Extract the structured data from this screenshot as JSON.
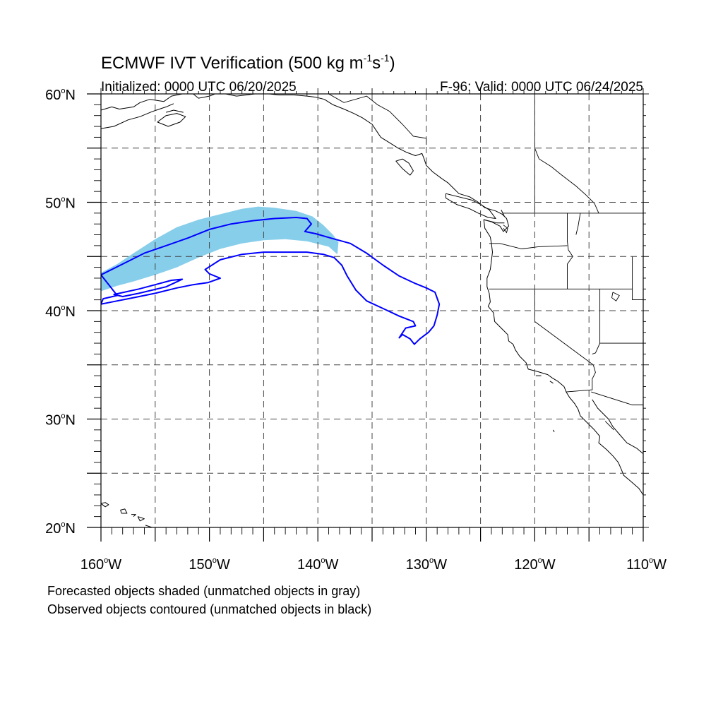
{
  "title": {
    "main": "ECMWF IVT Verification (500 kg m",
    "sup1": "-1",
    "mid": "s",
    "sup2": "-1",
    "close": ")"
  },
  "subtitle_left": "Initialized: 0000 UTC 06/20/2025",
  "subtitle_right": "F-96: Valid: 0000 UTC 06/24/2025",
  "map": {
    "lon_range": [
      -160,
      -110
    ],
    "lat_range": [
      20,
      60
    ],
    "grid": true,
    "grid_style": "dashed"
  },
  "axes": {
    "lat_labels": [
      {
        "value": 60,
        "label": "60",
        "suffix": "N"
      },
      {
        "value": 50,
        "label": "50",
        "suffix": "N"
      },
      {
        "value": 40,
        "label": "40",
        "suffix": "N"
      },
      {
        "value": 30,
        "label": "30",
        "suffix": "N"
      },
      {
        "value": 20,
        "label": "20",
        "suffix": "N"
      }
    ],
    "lon_labels": [
      {
        "value": -160,
        "label": "160",
        "suffix": "W"
      },
      {
        "value": -150,
        "label": "150",
        "suffix": "W"
      },
      {
        "value": -140,
        "label": "140",
        "suffix": "W"
      },
      {
        "value": -130,
        "label": "130",
        "suffix": "W"
      },
      {
        "value": -120,
        "label": "120",
        "suffix": "W"
      },
      {
        "value": -110,
        "label": "110",
        "suffix": "W"
      }
    ]
  },
  "colors": {
    "forecast_fill": "#87ceeb",
    "observed_contour": "#0000ff",
    "coastline": "#000000",
    "grid": "#444444"
  },
  "legend": {
    "line1": "Forecasted objects shaded (unmatched objects in gray)",
    "line2": "Observed objects contoured (unmatched objects in black)"
  },
  "forecast_object": [
    [
      -160.0,
      41.8
    ],
    [
      -158.5,
      42.3
    ],
    [
      -157.0,
      42.7
    ],
    [
      -155.0,
      43.3
    ],
    [
      -153.0,
      44.0
    ],
    [
      -151.0,
      44.9
    ],
    [
      -149.0,
      45.7
    ],
    [
      -147.0,
      46.2
    ],
    [
      -145.0,
      46.5
    ],
    [
      -143.0,
      46.6
    ],
    [
      -141.0,
      46.4
    ],
    [
      -139.0,
      45.9
    ],
    [
      -138.2,
      45.2
    ],
    [
      -138.1,
      46.3
    ],
    [
      -138.6,
      47.0
    ],
    [
      -139.5,
      47.9
    ],
    [
      -140.5,
      48.7
    ],
    [
      -142.0,
      49.2
    ],
    [
      -144.0,
      49.5
    ],
    [
      -145.5,
      49.6
    ],
    [
      -147.0,
      49.4
    ],
    [
      -149.0,
      48.9
    ],
    [
      -151.0,
      48.4
    ],
    [
      -153.0,
      47.7
    ],
    [
      -155.0,
      46.6
    ],
    [
      -157.0,
      45.3
    ],
    [
      -158.5,
      44.3
    ],
    [
      -160.0,
      43.5
    ]
  ],
  "observed_object_outer": [
    [
      -160.0,
      43.3
    ],
    [
      -158.0,
      44.3
    ],
    [
      -156.0,
      45.3
    ],
    [
      -154.0,
      46.0
    ],
    [
      -152.0,
      46.7
    ],
    [
      -150.0,
      47.5
    ],
    [
      -148.0,
      48.0
    ],
    [
      -146.0,
      48.3
    ],
    [
      -144.0,
      48.5
    ],
    [
      -142.0,
      48.6
    ],
    [
      -141.0,
      48.5
    ],
    [
      -140.6,
      48.0
    ],
    [
      -141.2,
      47.3
    ],
    [
      -140.2,
      47.1
    ],
    [
      -138.8,
      46.7
    ],
    [
      -137.0,
      46.2
    ],
    [
      -135.5,
      45.3
    ],
    [
      -134.0,
      44.2
    ],
    [
      -132.5,
      43.2
    ],
    [
      -131.0,
      42.5
    ],
    [
      -130.0,
      42.1
    ],
    [
      -129.2,
      41.7
    ],
    [
      -128.8,
      40.6
    ],
    [
      -129.0,
      39.6
    ],
    [
      -129.3,
      38.6
    ],
    [
      -129.8,
      38.0
    ],
    [
      -130.6,
      37.4
    ],
    [
      -131.1,
      36.9
    ],
    [
      -131.5,
      37.4
    ],
    [
      -132.2,
      37.8
    ],
    [
      -132.5,
      37.5
    ],
    [
      -131.9,
      38.4
    ],
    [
      -131.0,
      38.6
    ],
    [
      -131.2,
      39.0
    ],
    [
      -132.5,
      39.5
    ],
    [
      -134.0,
      40.2
    ],
    [
      -135.5,
      40.9
    ],
    [
      -136.5,
      41.9
    ],
    [
      -137.3,
      43.2
    ],
    [
      -137.8,
      44.2
    ],
    [
      -138.5,
      44.9
    ],
    [
      -139.5,
      45.2
    ],
    [
      -141.0,
      45.4
    ],
    [
      -143.0,
      45.4
    ],
    [
      -145.0,
      45.4
    ],
    [
      -147.0,
      45.2
    ],
    [
      -149.0,
      44.7
    ],
    [
      -150.4,
      43.8
    ],
    [
      -150.0,
      43.4
    ],
    [
      -149.0,
      43.0
    ],
    [
      -150.1,
      42.6
    ],
    [
      -151.5,
      42.4
    ],
    [
      -153.0,
      42.1
    ],
    [
      -155.0,
      41.6
    ],
    [
      -157.0,
      41.2
    ],
    [
      -159.0,
      40.8
    ],
    [
      -160.0,
      40.6
    ],
    [
      -159.8,
      41.1
    ],
    [
      -158.5,
      41.4
    ]
  ],
  "observed_object_inner": [
    [
      -158.3,
      41.6
    ],
    [
      -156.5,
      42.0
    ],
    [
      -155.0,
      42.4
    ],
    [
      -153.5,
      42.8
    ],
    [
      -152.5,
      42.9
    ],
    [
      -154.0,
      42.2
    ],
    [
      -156.5,
      41.6
    ],
    [
      -158.0,
      41.3
    ],
    [
      -158.8,
      41.5
    ]
  ],
  "coastlines": [
    [
      [
        -160.0,
        58.5
      ],
      [
        -159.0,
        58.8
      ],
      [
        -158.3,
        58.6
      ],
      [
        -157.0,
        58.8
      ],
      [
        -156.4,
        59.2
      ],
      [
        -155.5,
        59.5
      ],
      [
        -154.2,
        59.3
      ],
      [
        -153.5,
        59.8
      ],
      [
        -152.5,
        60.0
      ]
    ],
    [
      [
        -160.0,
        56.8
      ],
      [
        -158.8,
        57.0
      ],
      [
        -157.5,
        57.6
      ],
      [
        -156.4,
        57.9
      ],
      [
        -155.2,
        58.4
      ],
      [
        -154.0,
        58.8
      ],
      [
        -153.3,
        59.1
      ]
    ],
    [
      [
        -154.8,
        57.4
      ],
      [
        -153.8,
        57.0
      ],
      [
        -152.7,
        57.4
      ],
      [
        -152.2,
        57.9
      ],
      [
        -153.0,
        58.2
      ],
      [
        -154.0,
        58.0
      ],
      [
        -154.8,
        57.4
      ]
    ],
    [
      [
        -154.0,
        58.3
      ],
      [
        -153.3,
        58.5
      ],
      [
        -152.4,
        58.3
      ]
    ],
    [
      [
        -151.5,
        60.0
      ],
      [
        -151.0,
        59.6
      ],
      [
        -150.0,
        59.8
      ],
      [
        -149.5,
        60.0
      ]
    ],
    [
      [
        -148.5,
        60.0
      ],
      [
        -147.5,
        59.8
      ],
      [
        -146.6,
        59.9
      ],
      [
        -145.8,
        60.0
      ]
    ],
    [
      [
        -144.5,
        60.0
      ],
      [
        -143.6,
        59.9
      ],
      [
        -142.2,
        59.9
      ],
      [
        -141.0,
        59.8
      ],
      [
        -140.2,
        59.7
      ],
      [
        -139.4,
        59.5
      ],
      [
        -138.6,
        59.0
      ],
      [
        -137.6,
        58.6
      ],
      [
        -136.7,
        58.2
      ],
      [
        -135.9,
        57.8
      ],
      [
        -135.0,
        57.2
      ],
      [
        -134.6,
        56.6
      ],
      [
        -134.2,
        56.0
      ],
      [
        -133.4,
        55.5
      ],
      [
        -132.6,
        55.0
      ],
      [
        -131.8,
        54.6
      ],
      [
        -131.0,
        54.3
      ],
      [
        -130.4,
        54.5
      ],
      [
        -130.2,
        54.0
      ],
      [
        -130.0,
        53.4
      ],
      [
        -129.4,
        52.8
      ],
      [
        -128.6,
        52.2
      ],
      [
        -128.0,
        51.8
      ],
      [
        -127.5,
        51.3
      ],
      [
        -127.0,
        50.8
      ],
      [
        -126.0,
        50.5
      ],
      [
        -125.2,
        50.0
      ],
      [
        -124.6,
        49.5
      ],
      [
        -123.6,
        49.2
      ],
      [
        -123.0,
        48.9
      ],
      [
        -122.6,
        48.5
      ],
      [
        -122.4,
        47.8
      ],
      [
        -122.9,
        47.3
      ],
      [
        -123.2,
        47.8
      ],
      [
        -124.0,
        48.2
      ],
      [
        -124.7,
        48.4
      ],
      [
        -124.6,
        47.6
      ],
      [
        -124.1,
        46.8
      ],
      [
        -124.0,
        46.2
      ],
      [
        -123.9,
        45.4
      ],
      [
        -124.0,
        44.6
      ],
      [
        -124.1,
        43.8
      ],
      [
        -124.4,
        43.0
      ],
      [
        -124.4,
        42.2
      ],
      [
        -124.2,
        41.6
      ],
      [
        -124.1,
        40.8
      ],
      [
        -124.3,
        40.4
      ],
      [
        -123.8,
        39.8
      ],
      [
        -123.7,
        39.0
      ],
      [
        -123.0,
        38.3
      ],
      [
        -122.5,
        37.8
      ],
      [
        -122.4,
        37.2
      ],
      [
        -122.0,
        36.9
      ],
      [
        -121.8,
        36.4
      ],
      [
        -121.4,
        35.8
      ],
      [
        -120.8,
        35.2
      ],
      [
        -120.6,
        34.6
      ],
      [
        -119.8,
        34.4
      ],
      [
        -118.8,
        34.1
      ],
      [
        -118.4,
        33.8
      ],
      [
        -117.9,
        33.5
      ],
      [
        -117.3,
        33.0
      ],
      [
        -117.1,
        32.5
      ],
      [
        -116.8,
        32.0
      ],
      [
        -116.3,
        31.4
      ],
      [
        -116.0,
        30.9
      ],
      [
        -115.8,
        30.3
      ],
      [
        -115.2,
        29.7
      ],
      [
        -114.5,
        29.0
      ],
      [
        -114.0,
        28.4
      ],
      [
        -114.1,
        27.8
      ],
      [
        -113.4,
        27.2
      ],
      [
        -112.8,
        26.6
      ],
      [
        -112.3,
        26.0
      ],
      [
        -112.0,
        25.3
      ],
      [
        -111.8,
        24.8
      ],
      [
        -111.2,
        24.3
      ],
      [
        -110.4,
        23.6
      ],
      [
        -110.0,
        23.0
      ]
    ],
    [
      [
        -114.7,
        31.8
      ],
      [
        -114.2,
        31.0
      ],
      [
        -113.2,
        30.0
      ],
      [
        -112.8,
        29.3
      ],
      [
        -112.2,
        28.6
      ],
      [
        -111.5,
        27.8
      ],
      [
        -110.6,
        27.3
      ],
      [
        -110.0,
        26.8
      ]
    ],
    [
      [
        -132.2,
        54.0
      ],
      [
        -132.8,
        53.8
      ],
      [
        -132.2,
        53.1
      ],
      [
        -131.5,
        52.5
      ],
      [
        -131.2,
        52.9
      ],
      [
        -131.6,
        53.6
      ],
      [
        -132.2,
        54.0
      ]
    ],
    [
      [
        -128.2,
        50.8
      ],
      [
        -127.0,
        50.5
      ],
      [
        -125.8,
        50.2
      ],
      [
        -125.0,
        49.8
      ],
      [
        -124.2,
        49.3
      ],
      [
        -123.6,
        48.5
      ],
      [
        -124.3,
        48.6
      ],
      [
        -125.2,
        49.0
      ],
      [
        -126.0,
        49.4
      ],
      [
        -127.2,
        49.8
      ],
      [
        -128.2,
        50.4
      ],
      [
        -128.2,
        50.8
      ]
    ],
    [
      [
        -124.7,
        48.4
      ],
      [
        -123.5,
        48.1
      ],
      [
        -122.8,
        48.1
      ]
    ],
    [
      [
        -123.1,
        49.3
      ],
      [
        -122.8,
        48.7
      ]
    ],
    [
      [
        -160.0,
        22.2
      ],
      [
        -159.6,
        22.3
      ],
      [
        -159.3,
        22.1
      ],
      [
        -159.6,
        21.9
      ],
      [
        -160.0,
        22.2
      ]
    ],
    [
      [
        -158.2,
        21.6
      ],
      [
        -157.8,
        21.7
      ],
      [
        -157.6,
        21.3
      ],
      [
        -158.1,
        21.3
      ],
      [
        -158.2,
        21.6
      ]
    ],
    [
      [
        -157.2,
        21.2
      ],
      [
        -156.8,
        21.2
      ],
      [
        -157.0,
        21.0
      ]
    ],
    [
      [
        -156.6,
        21.0
      ],
      [
        -156.0,
        20.8
      ],
      [
        -156.4,
        20.6
      ],
      [
        -156.6,
        21.0
      ]
    ],
    [
      [
        -155.9,
        20.2
      ],
      [
        -155.0,
        19.9
      ],
      [
        -154.9,
        19.7
      ]
    ],
    [
      [
        -119.9,
        34.0
      ],
      [
        -119.4,
        34.0
      ]
    ],
    [
      [
        -118.6,
        33.5
      ],
      [
        -118.3,
        33.3
      ]
    ],
    [
      [
        -118.3,
        29.0
      ],
      [
        -118.2,
        28.8
      ]
    ]
  ],
  "land_boundaries": [
    [
      [
        -141.0,
        60.0
      ],
      [
        -141.0,
        59.8
      ]
    ],
    [
      [
        -139.0,
        60.0
      ],
      [
        -137.6,
        59.2
      ],
      [
        -135.5,
        59.8
      ],
      [
        -134.5,
        59.0
      ],
      [
        -133.4,
        58.4
      ],
      [
        -132.2,
        57.2
      ],
      [
        -131.2,
        56.1
      ],
      [
        -130.0,
        55.9
      ],
      [
        -130.0,
        55.3
      ]
    ],
    [
      [
        -123.0,
        49.0
      ],
      [
        -110.0,
        49.0
      ]
    ],
    [
      [
        -117.0,
        49.0
      ],
      [
        -117.0,
        46.4
      ],
      [
        -116.9,
        45.6
      ],
      [
        -116.5,
        45.0
      ],
      [
        -117.0,
        44.3
      ],
      [
        -117.0,
        42.0
      ]
    ],
    [
      [
        -124.2,
        46.2
      ],
      [
        -123.2,
        46.2
      ],
      [
        -121.2,
        45.7
      ],
      [
        -119.6,
        45.9
      ],
      [
        -117.0,
        46.0
      ]
    ],
    [
      [
        -124.2,
        42.0
      ],
      [
        -111.0,
        42.0
      ]
    ],
    [
      [
        -120.0,
        42.0
      ],
      [
        -120.0,
        39.0
      ],
      [
        -114.6,
        35.0
      ],
      [
        -114.4,
        34.3
      ],
      [
        -114.7,
        33.7
      ],
      [
        -114.7,
        32.7
      ],
      [
        -117.1,
        32.5
      ]
    ],
    [
      [
        -114.0,
        42.0
      ],
      [
        -114.0,
        37.0
      ],
      [
        -114.4,
        36.1
      ],
      [
        -114.7,
        36.0
      ]
    ],
    [
      [
        -114.0,
        37.0
      ],
      [
        -109.0,
        37.0
      ]
    ],
    [
      [
        -111.0,
        45.0
      ],
      [
        -111.0,
        41.0
      ],
      [
        -110.0,
        41.0
      ]
    ],
    [
      [
        -114.8,
        32.5
      ],
      [
        -111.0,
        31.3
      ],
      [
        -110.0,
        31.3
      ]
    ],
    [
      [
        -120.0,
        60.0
      ],
      [
        -120.0,
        49.0
      ]
    ],
    [
      [
        -115.8,
        49.0
      ],
      [
        -116.0,
        47.8
      ],
      [
        -116.2,
        47.0
      ]
    ],
    [
      [
        -113.5,
        29.8
      ],
      [
        -112.7,
        29.0
      ]
    ],
    [
      [
        -120.0,
        55.0
      ],
      [
        -119.6,
        54.0
      ],
      [
        -118.5,
        53.3
      ],
      [
        -117.5,
        52.5
      ],
      [
        -116.2,
        51.5
      ],
      [
        -115.3,
        50.7
      ],
      [
        -114.5,
        49.9
      ],
      [
        -114.1,
        49.0
      ]
    ]
  ],
  "lakes": [
    [
      [
        -112.8,
        41.7
      ],
      [
        -112.2,
        41.4
      ],
      [
        -112.5,
        40.9
      ],
      [
        -112.9,
        41.2
      ],
      [
        -112.8,
        41.7
      ]
    ],
    [
      [
        -122.9,
        47.9
      ],
      [
        -122.5,
        47.6
      ],
      [
        -122.6,
        47.2
      ],
      [
        -122.9,
        47.6
      ]
    ]
  ]
}
